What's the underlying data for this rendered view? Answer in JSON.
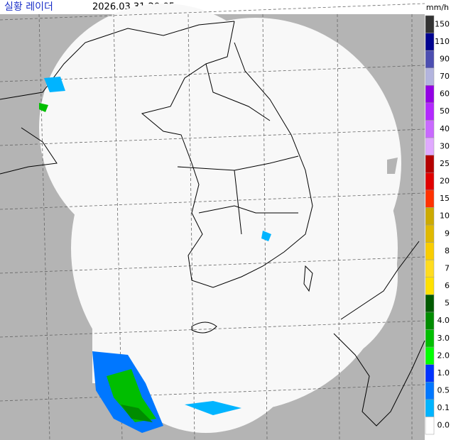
{
  "header": {
    "title": "실황 레이더",
    "time": "2026.03.31.20:05",
    "unit": "mm/h"
  },
  "legend": {
    "items": [
      {
        "label": "150",
        "color": "#333333"
      },
      {
        "label": "110",
        "color": "#000390"
      },
      {
        "label": "90",
        "color": "#4c4eb1"
      },
      {
        "label": "70",
        "color": "#b3b4de"
      },
      {
        "label": "60",
        "color": "#9300e4"
      },
      {
        "label": "50",
        "color": "#b329ff"
      },
      {
        "label": "40",
        "color": "#c969ff"
      },
      {
        "label": "30",
        "color": "#e0a9ff"
      },
      {
        "label": "25",
        "color": "#b40000"
      },
      {
        "label": "20",
        "color": "#e00000"
      },
      {
        "label": "15",
        "color": "#ff3200"
      },
      {
        "label": "10",
        "color": "#ccaa00"
      },
      {
        "label": "9",
        "color": "#e0b900"
      },
      {
        "label": "8",
        "color": "#f9cd00"
      },
      {
        "label": "7",
        "color": "#ffdc1f"
      },
      {
        "label": "6",
        "color": "#ffe100"
      },
      {
        "label": "5",
        "color": "#005a00"
      },
      {
        "label": "4.0",
        "color": "#008c00"
      },
      {
        "label": "3.0",
        "color": "#00be00"
      },
      {
        "label": "2.0",
        "color": "#00ff00"
      },
      {
        "label": "1.0",
        "color": "#0033ff"
      },
      {
        "label": "0.5",
        "color": "#0077ff"
      },
      {
        "label": "0.1",
        "color": "#00b4ff"
      },
      {
        "label": "0.0",
        "color": "#ffffff"
      }
    ]
  }
}
